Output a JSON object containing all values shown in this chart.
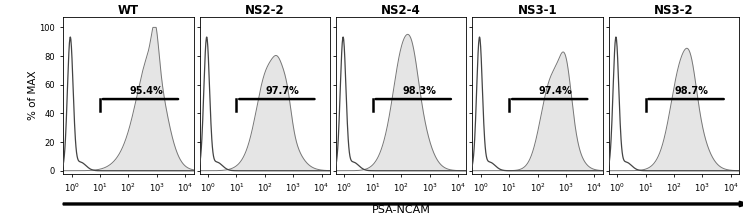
{
  "panels": [
    {
      "title": "WT",
      "percentage": "95.4%"
    },
    {
      "title": "NS2-2",
      "percentage": "97.7%"
    },
    {
      "title": "NS2-4",
      "percentage": "98.3%"
    },
    {
      "title": "NS3-1",
      "percentage": "97.4%"
    },
    {
      "title": "NS3-2",
      "percentage": "98.7%"
    }
  ],
  "xlabel": "PSA-NCAM",
  "ylabel": "% of MAX",
  "yticks": [
    0,
    20,
    40,
    60,
    80,
    100
  ],
  "background_color": "#ffffff",
  "line_color_neg": "#444444",
  "fill_color": "#cccccc",
  "fill_alpha": 0.5,
  "fill_edge_color": "#777777",
  "title_fontsize": 8.5,
  "label_fontsize": 7.5,
  "tick_fontsize": 6,
  "bracket_fontsize": 7,
  "bracket_lw": 1.8
}
